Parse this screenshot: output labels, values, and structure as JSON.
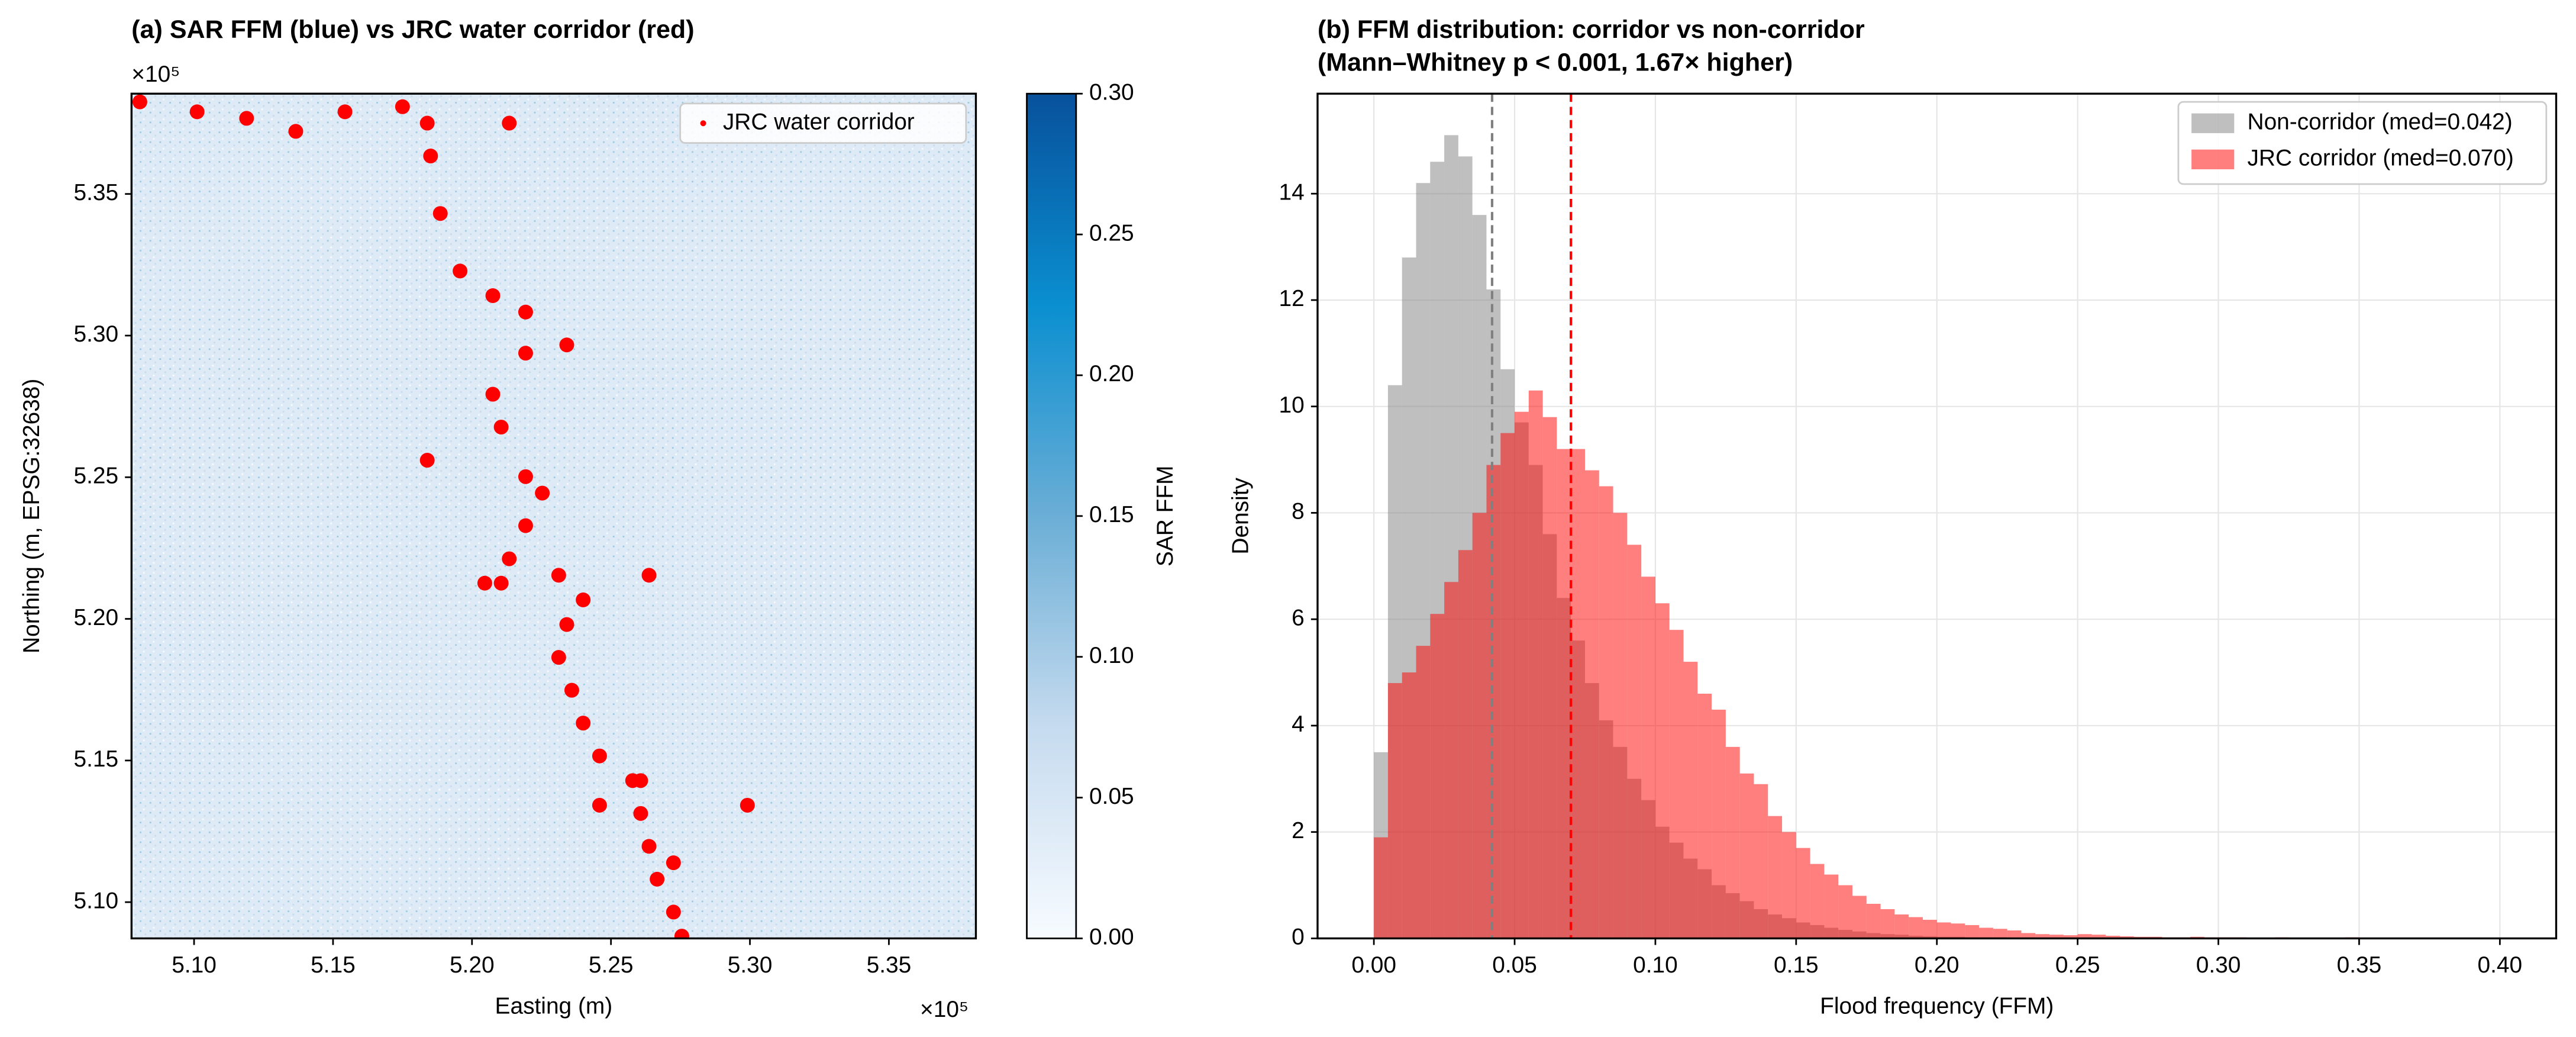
{
  "chart_data": [
    {
      "type": "scatter",
      "title": "(a) SAR FFM (blue) vs JRC water corridor (red)",
      "x_label": "Easting (m)",
      "y_label": "Northing (m, EPSG:32638)",
      "x_offset_label": "×10⁵",
      "y_offset_label": "×10⁵",
      "xlim": [
        5.0775,
        5.3813
      ],
      "ylim": [
        5.0872,
        5.3854
      ],
      "xticks": [
        {
          "value": 5.1,
          "label": "5.10"
        },
        {
          "value": 5.15,
          "label": "5.15"
        },
        {
          "value": 5.2,
          "label": "5.20"
        },
        {
          "value": 5.25,
          "label": "5.25"
        },
        {
          "value": 5.3,
          "label": "5.30"
        },
        {
          "value": 5.35,
          "label": "5.35"
        }
      ],
      "yticks": [
        {
          "value": 5.1,
          "label": "5.10"
        },
        {
          "value": 5.15,
          "label": "5.15"
        },
        {
          "value": 5.2,
          "label": "5.20"
        },
        {
          "value": 5.25,
          "label": "5.25"
        },
        {
          "value": 5.3,
          "label": "5.30"
        },
        {
          "value": 5.35,
          "label": "5.35"
        }
      ],
      "legend": "upper right",
      "series": [
        {
          "name": "JRC water corridor",
          "color": "#ff0000",
          "x": [
            5.0805,
            5.1011,
            5.1189,
            5.1366,
            5.1543,
            5.175,
            5.1851,
            5.1886,
            5.1957,
            5.2075,
            5.2193,
            5.2341,
            5.2193,
            5.2075,
            5.2105,
            5.2193,
            5.2253,
            5.2193,
            5.2134,
            5.2105,
            5.2312,
            5.24,
            5.2341,
            5.2312,
            5.2359,
            5.24,
            5.2459,
            5.2578,
            5.2607,
            5.2637,
            5.2666,
            5.2725,
            5.2755,
            5.2046,
            5.1839,
            5.2134,
            5.2607,
            5.2459,
            5.2725,
            5.2991,
            5.2637,
            5.1839
          ],
          "y": [
            5.3825,
            5.379,
            5.3767,
            5.3721,
            5.379,
            5.3808,
            5.3634,
            5.3431,
            5.3228,
            5.3141,
            5.3083,
            5.2967,
            5.2938,
            5.2793,
            5.2677,
            5.2502,
            5.2444,
            5.2329,
            5.2212,
            5.2126,
            5.2154,
            5.2067,
            5.198,
            5.1864,
            5.1748,
            5.1632,
            5.1516,
            5.1429,
            5.1313,
            5.1197,
            5.1081,
            5.0965,
            5.088,
            5.2126,
            5.375,
            5.375,
            5.1429,
            5.1342,
            5.1139,
            5.1342,
            5.2154,
            5.256
          ]
        }
      ],
      "colorbar": {
        "label": "SAR FFM",
        "lim": [
          0,
          0.3
        ],
        "colors": [
          "#f7fbff",
          "#c6dbef",
          "#6baed6",
          "#0a8fd0",
          "#08519c"
        ],
        "ticks": [
          {
            "value": 0,
            "label": "0.00"
          },
          {
            "value": 0.05,
            "label": "0.05"
          },
          {
            "value": 0.1,
            "label": "0.10"
          },
          {
            "value": 0.15,
            "label": "0.15"
          },
          {
            "value": 0.2,
            "label": "0.20"
          },
          {
            "value": 0.25,
            "label": "0.25"
          },
          {
            "value": 0.3,
            "label": "0.30"
          }
        ]
      }
    },
    {
      "type": "histogram",
      "title": "(b) FFM distribution: corridor vs non-corridor",
      "subtitle": "(Mann–Whitney p < 0.001, 1.67× higher)",
      "x_label": "Flood frequency (FFM)",
      "y_label": "Density",
      "xlim": [
        -0.02,
        0.42
      ],
      "ylim": [
        0,
        15.88
      ],
      "grid": true,
      "legend": "upper right",
      "xticks": [
        {
          "value": 0,
          "label": "0.00"
        },
        {
          "value": 0.05,
          "label": "0.05"
        },
        {
          "value": 0.1,
          "label": "0.10"
        },
        {
          "value": 0.15,
          "label": "0.15"
        },
        {
          "value": 0.2,
          "label": "0.20"
        },
        {
          "value": 0.25,
          "label": "0.25"
        },
        {
          "value": 0.3,
          "label": "0.30"
        },
        {
          "value": 0.35,
          "label": "0.35"
        },
        {
          "value": 0.4,
          "label": "0.40"
        }
      ],
      "yticks": [
        0,
        2,
        4,
        6,
        8,
        10,
        12,
        14
      ],
      "bins": [
        0,
        0.005,
        0.01,
        0.015,
        0.02,
        0.025,
        0.03,
        0.035,
        0.04,
        0.045,
        0.05,
        0.055,
        0.06,
        0.065,
        0.07,
        0.075,
        0.08,
        0.085,
        0.09,
        0.095,
        0.1,
        0.105,
        0.11,
        0.115,
        0.12,
        0.125,
        0.13,
        0.135,
        0.14,
        0.145,
        0.15,
        0.155,
        0.16,
        0.165,
        0.17,
        0.175,
        0.18,
        0.185,
        0.19,
        0.195,
        0.2,
        0.205,
        0.21,
        0.215,
        0.22,
        0.225,
        0.23,
        0.235,
        0.24,
        0.245,
        0.25,
        0.255,
        0.26,
        0.265,
        0.27,
        0.275,
        0.28,
        0.285,
        0.29,
        0.295,
        0.3,
        0.305,
        0.31,
        0.315,
        0.32,
        0.325,
        0.33,
        0.335,
        0.34,
        0.345,
        0.35,
        0.355,
        0.36,
        0.365,
        0.37,
        0.375,
        0.38,
        0.385,
        0.39,
        0.395,
        0.4
      ],
      "series": [
        {
          "name": "Non-corridor (med=0.042)",
          "color": "#808080",
          "alpha": 0.5,
          "median": 0.042,
          "values": [
            3.5,
            10.4,
            12.8,
            14.2,
            14.6,
            15.1,
            14.7,
            13.6,
            12.2,
            10.7,
            9.7,
            8.9,
            7.6,
            6.4,
            5.6,
            4.8,
            4.1,
            3.6,
            3.0,
            2.6,
            2.1,
            1.8,
            1.5,
            1.3,
            1.0,
            0.85,
            0.7,
            0.55,
            0.45,
            0.38,
            0.3,
            0.25,
            0.2,
            0.16,
            0.13,
            0.1,
            0.08,
            0.07,
            0.05,
            0.04,
            0.03,
            0.03,
            0.02,
            0.02,
            0.02,
            0.015,
            0.01,
            0.01,
            0.01,
            0.008,
            0.006,
            0.005,
            0.004,
            0.004,
            0.003,
            0.003,
            0.002,
            0.002,
            0.002,
            0.002,
            0.001,
            0.001,
            0.001,
            0.001,
            0.001,
            0.001,
            0.001,
            0.001,
            0.001,
            0.001,
            0,
            0,
            0,
            0,
            0,
            0,
            0,
            0,
            0,
            0.001
          ]
        },
        {
          "name": "JRC corridor (med=0.070)",
          "color": "#ff0000",
          "alpha": 0.5,
          "median": 0.07,
          "values": [
            1.9,
            4.8,
            5.0,
            5.5,
            6.1,
            6.7,
            7.3,
            8.0,
            8.9,
            9.5,
            9.9,
            10.3,
            9.8,
            9.2,
            9.2,
            8.8,
            8.5,
            8.0,
            7.4,
            6.8,
            6.3,
            5.8,
            5.2,
            4.6,
            4.3,
            3.6,
            3.1,
            2.9,
            2.3,
            2.0,
            1.7,
            1.4,
            1.2,
            1.0,
            0.8,
            0.65,
            0.55,
            0.45,
            0.4,
            0.35,
            0.3,
            0.28,
            0.25,
            0.2,
            0.18,
            0.15,
            0.1,
            0.08,
            0.07,
            0.06,
            0.08,
            0.07,
            0.05,
            0.04,
            0.03,
            0.03,
            0.02,
            0.02,
            0.03,
            0.02,
            0.02,
            0.02,
            0.01,
            0.01,
            0.02,
            0.01,
            0.01,
            0.01,
            0.01,
            0.02,
            0.01,
            0.01,
            0.01,
            0.01,
            0.01,
            0.01,
            0.01,
            0.01,
            0.01,
            0.01
          ]
        }
      ]
    }
  ]
}
